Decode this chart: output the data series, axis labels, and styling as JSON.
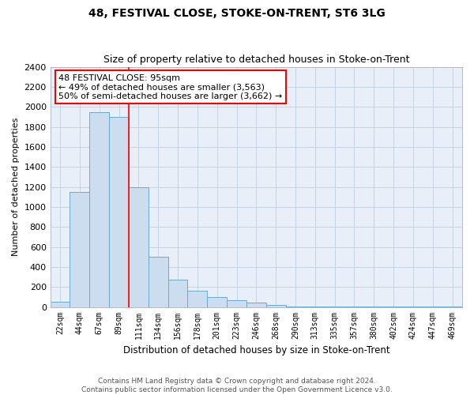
{
  "title": "48, FESTIVAL CLOSE, STOKE-ON-TRENT, ST6 3LG",
  "subtitle": "Size of property relative to detached houses in Stoke-on-Trent",
  "xlabel": "Distribution of detached houses by size in Stoke-on-Trent",
  "ylabel": "Number of detached properties",
  "categories": [
    "22sqm",
    "44sqm",
    "67sqm",
    "89sqm",
    "111sqm",
    "134sqm",
    "156sqm",
    "178sqm",
    "201sqm",
    "223sqm",
    "246sqm",
    "268sqm",
    "290sqm",
    "313sqm",
    "335sqm",
    "357sqm",
    "380sqm",
    "402sqm",
    "424sqm",
    "447sqm",
    "469sqm"
  ],
  "values": [
    50,
    1150,
    1950,
    1900,
    1200,
    500,
    270,
    160,
    100,
    65,
    40,
    20,
    5,
    5,
    2,
    2,
    1,
    1,
    1,
    1,
    1
  ],
  "bar_color": "#ccddf0",
  "bar_edge_color": "#6aaad4",
  "grid_color": "#c0d0e0",
  "background_color": "#e8eff8",
  "annotation_line1": "48 FESTIVAL CLOSE: 95sqm",
  "annotation_line2": "← 49% of detached houses are smaller (3,563)",
  "annotation_line3": "50% of semi-detached houses are larger (3,662) →",
  "annotation_box_color": "white",
  "annotation_box_edge": "red",
  "red_line_x": 3.5,
  "ylim": [
    0,
    2400
  ],
  "yticks": [
    0,
    200,
    400,
    600,
    800,
    1000,
    1200,
    1400,
    1600,
    1800,
    2000,
    2200,
    2400
  ],
  "footnote_line1": "Contains HM Land Registry data © Crown copyright and database right 2024.",
  "footnote_line2": "Contains public sector information licensed under the Open Government Licence v3.0."
}
